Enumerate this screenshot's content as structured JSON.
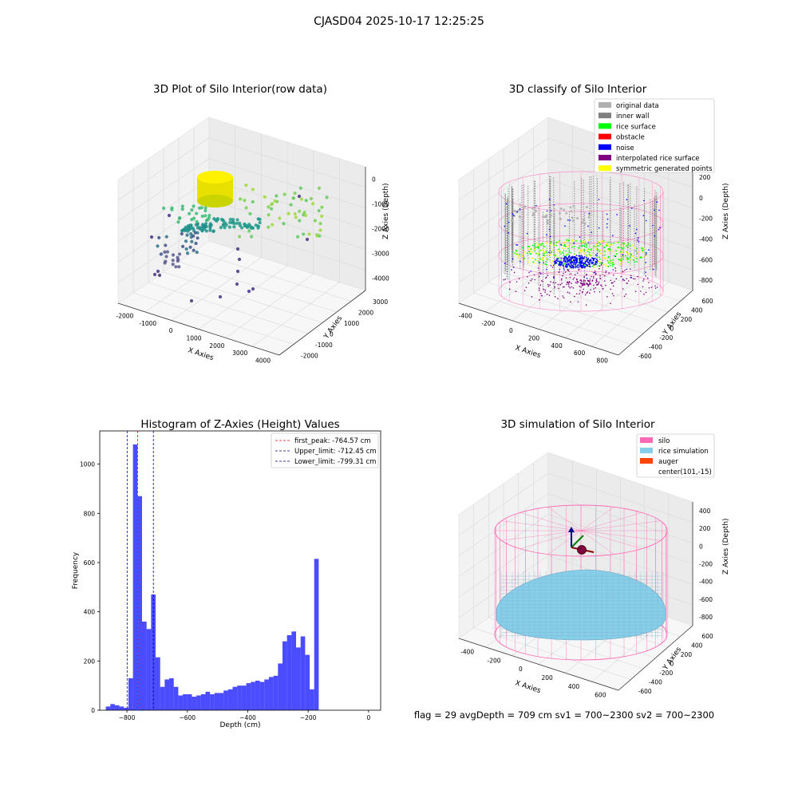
{
  "header": {
    "title": "CJASD04 2025-10-17 12:25:25"
  },
  "footer": {
    "text": "flag = 29   avgDepth = 709 cm   sv1 = 700~2300   sv2 = 700~2300"
  },
  "colors": {
    "bar": "#0000ff",
    "first_peak": "#ff0000",
    "limit": "#00008b",
    "silo": "#ff69b4",
    "rice_sim": "#87ceeb",
    "auger": "#ff4500",
    "original": "#b0b0b0",
    "inner_wall": "#808080",
    "rice_surface": "#00ff00",
    "obstacle": "#ff0000",
    "noise": "#0000ff",
    "interp": "#800080",
    "symmetric": "#ffff00"
  },
  "chart_data": [
    {
      "type": "scatter",
      "title": "3D Plot of Silo Interior(row data)",
      "xlabel": "X Axies",
      "ylabel": "Y Axies",
      "zlabel": "Z Axies (Depth)",
      "x_ticks": [
        "-2000",
        "-1000",
        "0",
        "1000",
        "2000",
        "3000",
        "4000"
      ],
      "y_ticks": [
        "-2000",
        "-1000",
        "0",
        "1000",
        "2000",
        "3000"
      ],
      "z_ticks": [
        "0",
        "-1000",
        "-2000",
        "-3000",
        "-4000"
      ]
    },
    {
      "type": "scatter",
      "title": "3D classify of Silo Interior",
      "xlabel": "X Axies",
      "ylabel": "Y Axies",
      "zlabel": "Z Axies (Depth)",
      "x_ticks": [
        "-400",
        "-200",
        "0",
        "200",
        "400",
        "600",
        "800"
      ],
      "y_ticks": [
        "-600",
        "-400",
        "-200",
        "0",
        "200",
        "400",
        "600"
      ],
      "z_ticks": [
        "200",
        "0",
        "-200",
        "-400",
        "-600",
        "-800"
      ],
      "z_top_tick": "400",
      "legend": [
        {
          "label": "original data",
          "color": "#b0b0b0"
        },
        {
          "label": "inner wall",
          "color": "#808080"
        },
        {
          "label": "rice surface",
          "color": "#00ff00"
        },
        {
          "label": "obstacle",
          "color": "#ff0000"
        },
        {
          "label": "noise",
          "color": "#0000ff"
        },
        {
          "label": "interpolated rice surface",
          "color": "#800080"
        },
        {
          "label": "symmetric generated points",
          "color": "#ffff00"
        }
      ]
    },
    {
      "type": "bar",
      "title": "Histogram of Z-Axies (Height) Values",
      "xlabel": "Depth (cm)",
      "ylabel": "Frequency",
      "xlim": [
        -890,
        40
      ],
      "ylim": [
        0,
        1135
      ],
      "x_ticks": [
        -800,
        -600,
        -400,
        -200,
        0
      ],
      "y_ticks": [
        0,
        200,
        400,
        600,
        800,
        1000
      ],
      "bin_start": -870,
      "bin_width": 15,
      "values": [
        15,
        25,
        20,
        15,
        10,
        130,
        1080,
        870,
        360,
        330,
        470,
        215,
        95,
        125,
        130,
        95,
        60,
        65,
        65,
        55,
        60,
        65,
        75,
        65,
        70,
        70,
        80,
        85,
        95,
        100,
        100,
        110,
        115,
        120,
        115,
        125,
        135,
        140,
        190,
        280,
        305,
        320,
        255,
        300,
        225,
        85,
        615
      ],
      "vlines": [
        {
          "label": "first_peak: -764.57 cm",
          "x": -764.57,
          "style": "first_peak"
        },
        {
          "label": "Upper_limit: -712.45 cm",
          "x": -712.45,
          "style": "limit"
        },
        {
          "label": "Lower_limit: -799.31 cm",
          "x": -799.31,
          "style": "limit"
        }
      ]
    },
    {
      "type": "scatter",
      "title": "3D simulation of Silo Interior",
      "xlabel": "X Axies",
      "ylabel": "Y Axies",
      "zlabel": "Z Axies (Depth)",
      "x_ticks": [
        "-400",
        "-200",
        "0",
        "200",
        "400",
        "600"
      ],
      "y_ticks": [
        "-600",
        "-400",
        "-200",
        "0",
        "200",
        "400",
        "600"
      ],
      "z_ticks": [
        "400",
        "200",
        "0",
        "-200",
        "-400",
        "-600",
        "-800"
      ],
      "legend": [
        {
          "label": "silo",
          "color": "#ff69b4"
        },
        {
          "label": "rice simulation",
          "color": "#87ceeb"
        },
        {
          "label": "auger",
          "color": "#ff4500"
        },
        {
          "label": "center(101,-15)",
          "color": ""
        }
      ]
    }
  ]
}
